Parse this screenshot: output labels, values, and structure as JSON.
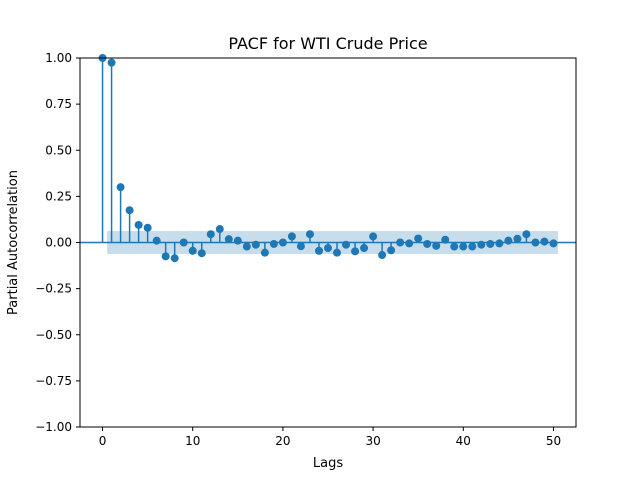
{
  "chart_data": {
    "type": "scatter",
    "title": "PACF for WTI Crude Price",
    "xlabel": "Lags",
    "ylabel": "Partial Autocorrelation",
    "xlim": [
      -2.5,
      52.5
    ],
    "ylim": [
      -1.0,
      1.0
    ],
    "x_ticks": [
      0,
      10,
      20,
      30,
      40,
      50
    ],
    "x_tick_labels": [
      "0",
      "10",
      "20",
      "30",
      "40",
      "50"
    ],
    "y_ticks": [
      -1.0,
      -0.75,
      -0.5,
      -0.25,
      0.0,
      0.25,
      0.5,
      0.75,
      1.0
    ],
    "y_tick_labels": [
      "−1.00",
      "−0.75",
      "−0.50",
      "−0.25",
      "0.00",
      "0.25",
      "0.50",
      "0.75",
      "1.00"
    ],
    "confidence_band": {
      "x_range": [
        0.5,
        50.5
      ],
      "lower": -0.062,
      "upper": 0.062
    },
    "colors": {
      "series": "#1f77b4",
      "band": "#1f77b4"
    },
    "series": [
      {
        "name": "PACF",
        "x": [
          0,
          1,
          2,
          3,
          4,
          5,
          6,
          7,
          8,
          9,
          10,
          11,
          12,
          13,
          14,
          15,
          16,
          17,
          18,
          19,
          20,
          21,
          22,
          23,
          24,
          25,
          26,
          27,
          28,
          29,
          30,
          31,
          32,
          33,
          34,
          35,
          36,
          37,
          38,
          39,
          40,
          41,
          42,
          43,
          44,
          45,
          46,
          47,
          48,
          49,
          50
        ],
        "values": [
          1.0,
          0.975,
          0.3,
          0.175,
          0.095,
          0.08,
          0.01,
          -0.075,
          -0.085,
          0.0,
          -0.045,
          -0.058,
          0.045,
          0.073,
          0.018,
          0.01,
          -0.022,
          -0.012,
          -0.055,
          -0.008,
          0.0,
          0.033,
          -0.02,
          0.045,
          -0.045,
          -0.03,
          -0.055,
          -0.012,
          -0.048,
          -0.03,
          0.033,
          -0.068,
          -0.042,
          0.0,
          -0.005,
          0.022,
          -0.008,
          -0.018,
          0.015,
          -0.022,
          -0.022,
          -0.022,
          -0.012,
          -0.008,
          -0.005,
          0.01,
          0.02,
          0.045,
          0.0,
          0.005,
          -0.005
        ]
      }
    ]
  }
}
